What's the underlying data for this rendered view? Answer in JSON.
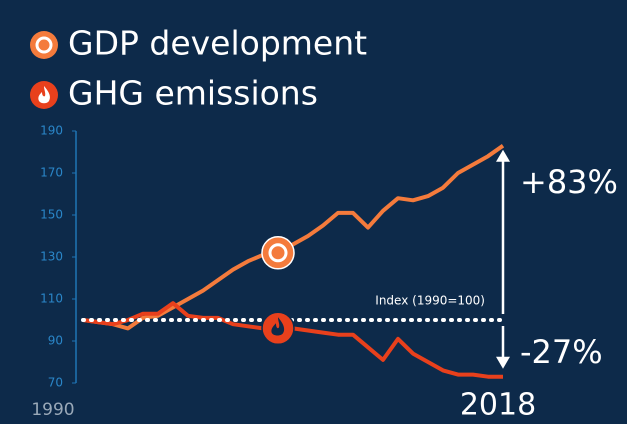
{
  "chart_data": {
    "type": "line",
    "x": [
      1990,
      1991,
      1992,
      1993,
      1994,
      1995,
      1996,
      1997,
      1998,
      1999,
      2000,
      2001,
      2002,
      2003,
      2004,
      2005,
      2006,
      2007,
      2008,
      2009,
      2010,
      2011,
      2012,
      2013,
      2014,
      2015,
      2016,
      2017,
      2018
    ],
    "series": [
      {
        "name": "GDP development",
        "color": "#f47b3c",
        "values": [
          100,
          99,
          98,
          96,
          101,
          102,
          106,
          110,
          114,
          119,
          124,
          128,
          131,
          132,
          136,
          140,
          145,
          151,
          151,
          144,
          152,
          158,
          157,
          159,
          163,
          170,
          174,
          178,
          183
        ]
      },
      {
        "name": "GHG emissions",
        "color": "#e8401c",
        "values": [
          100,
          99,
          98,
          100,
          103,
          103,
          108,
          102,
          101,
          101,
          98,
          97,
          96,
          97,
          96,
          95,
          94,
          93,
          93,
          87,
          81,
          91,
          84,
          80,
          76,
          74,
          74,
          73,
          73
        ]
      }
    ],
    "xlim": [
      1990,
      2018
    ],
    "xticks": [
      1990,
      2018
    ],
    "ylim": [
      70,
      190
    ],
    "yticks": [
      70,
      90,
      110,
      130,
      150,
      170,
      190
    ],
    "reference_line": {
      "value": 100,
      "label": "Index (1990=100)"
    },
    "annotations": [
      {
        "value": 83,
        "label": "+83%"
      },
      {
        "value": -27,
        "label": "-27%"
      }
    ]
  }
}
